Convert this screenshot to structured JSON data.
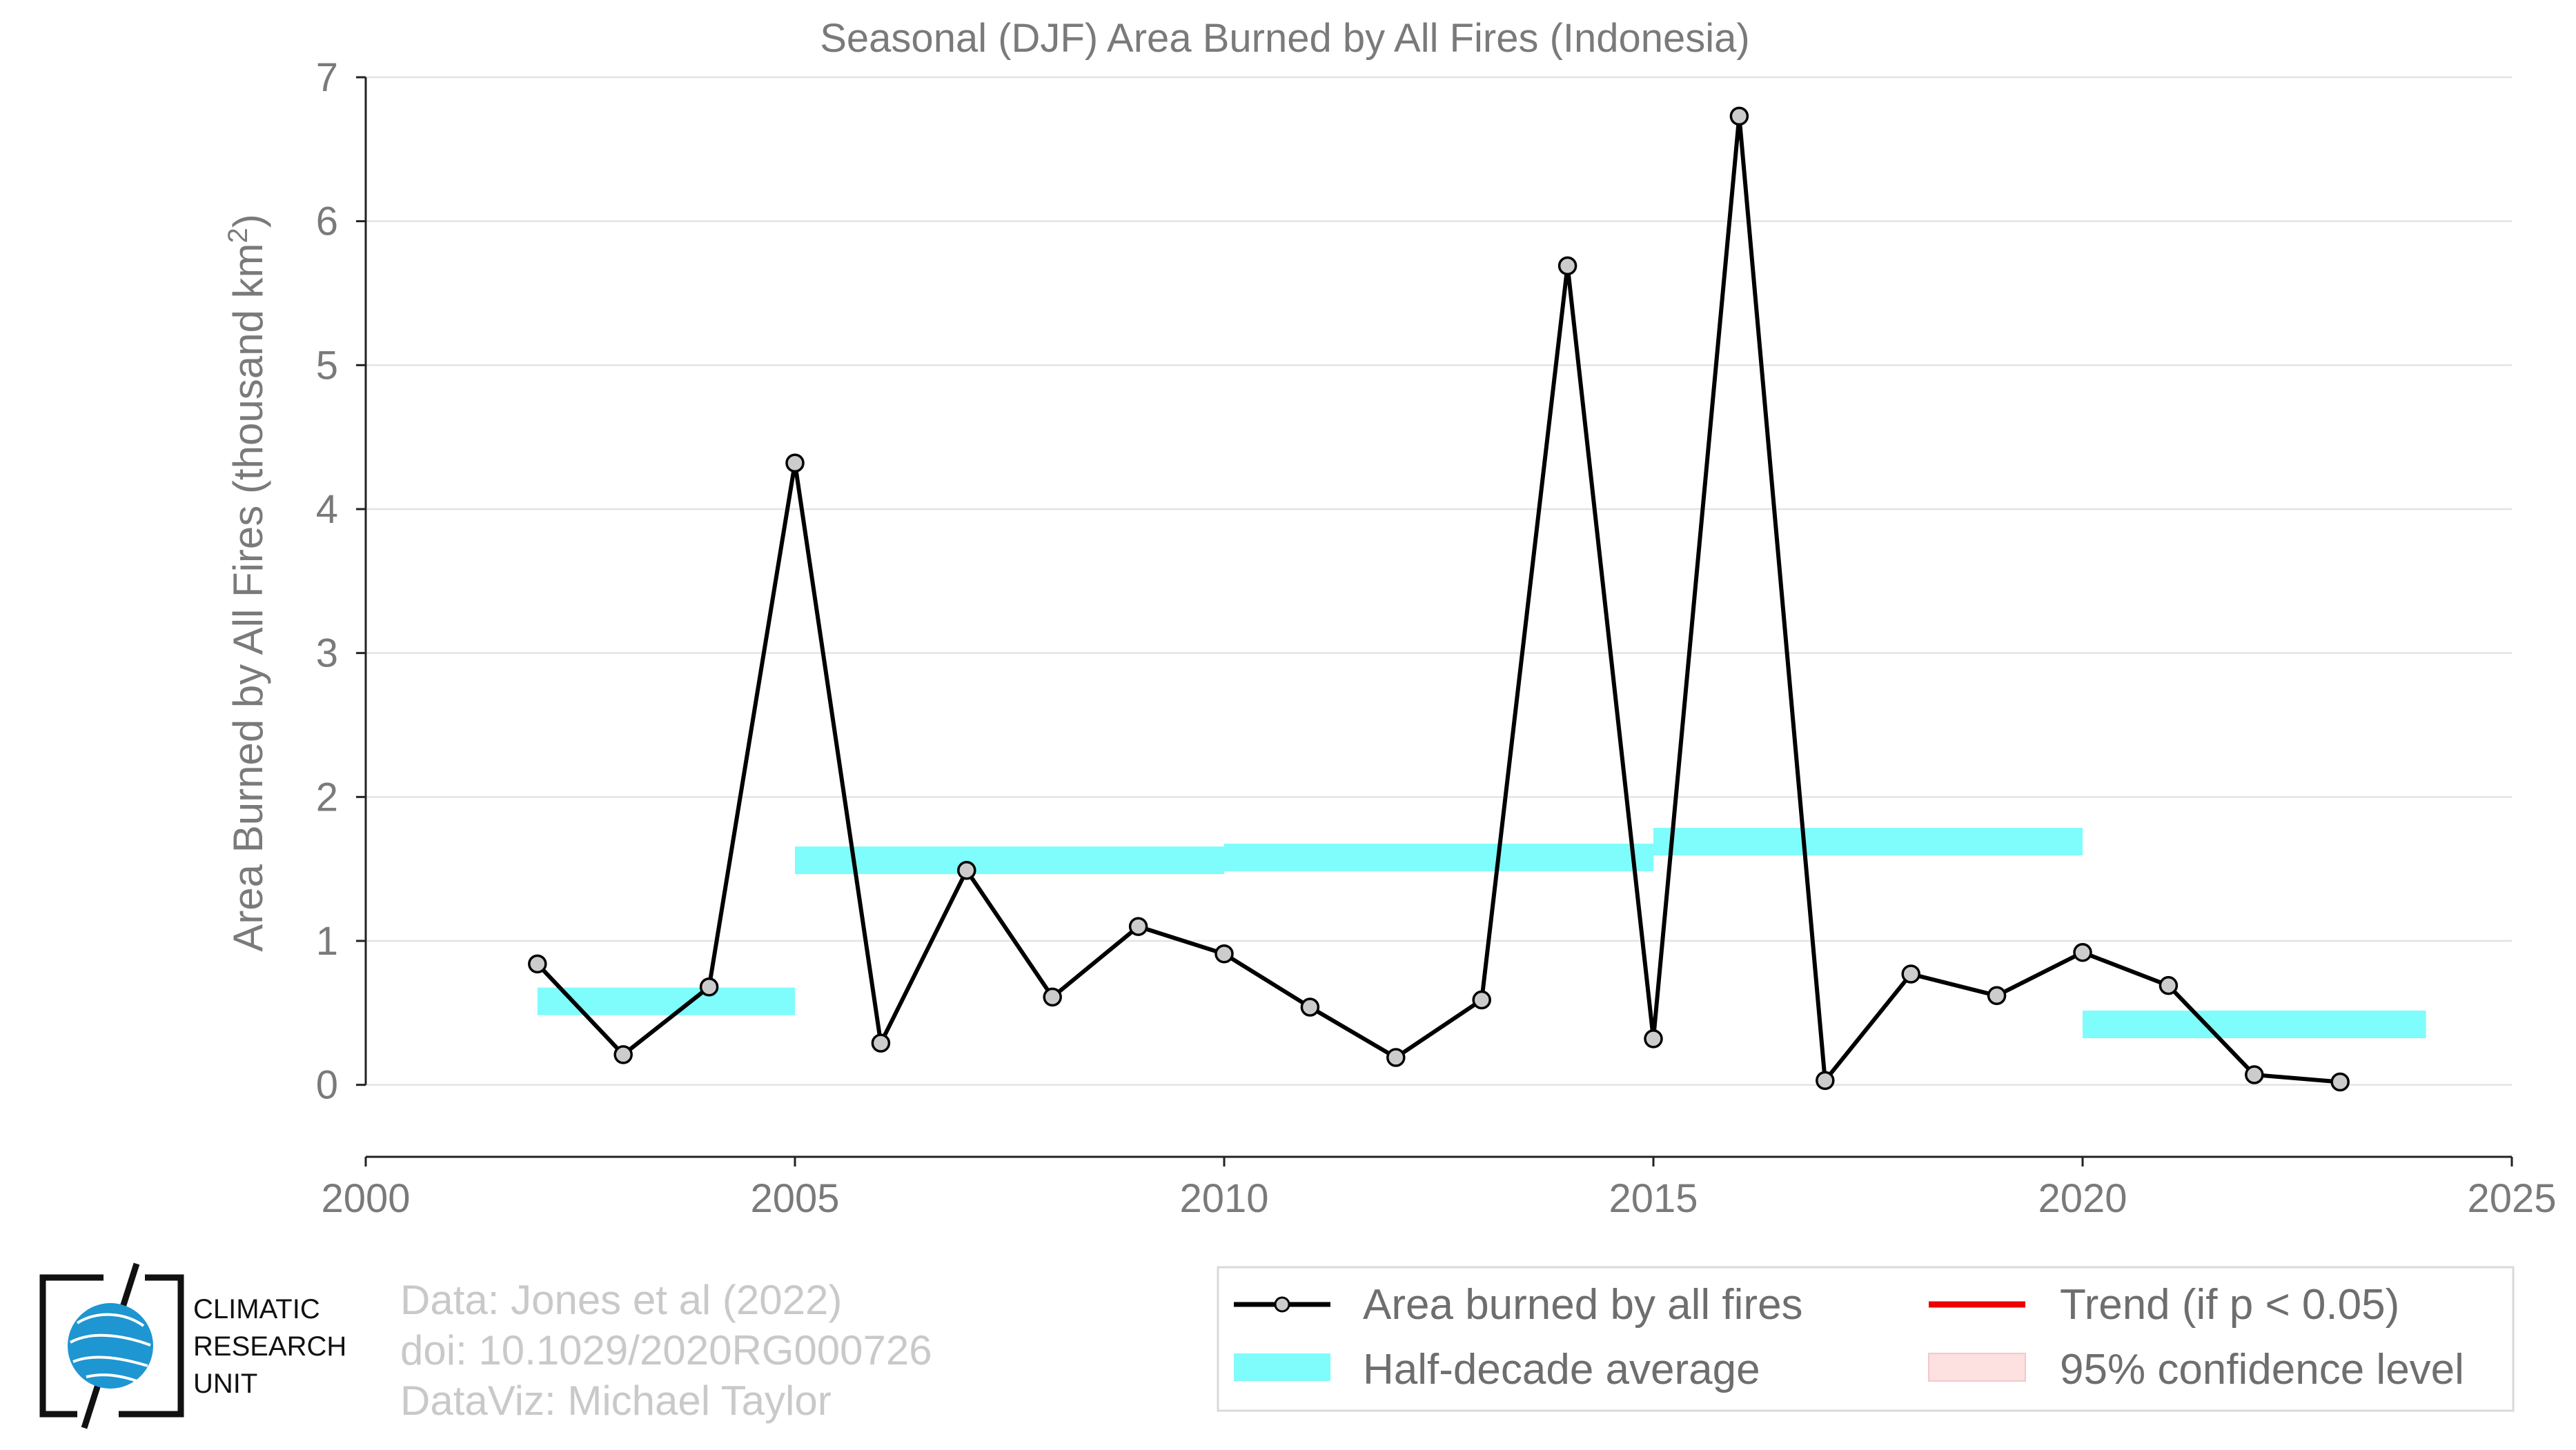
{
  "chart_data": {
    "type": "line",
    "title": "Seasonal (DJF) Area Burned by All Fires (Indonesia)",
    "ylabel_main": "Area Burned by All Fires (thousand km",
    "ylabel_sup": "2",
    "ylabel_close": ")",
    "xlim": [
      2000,
      2025
    ],
    "ylim": [
      -0.5,
      7
    ],
    "xticks": [
      2000,
      2005,
      2010,
      2015,
      2020,
      2025
    ],
    "yticks": [
      0,
      1,
      2,
      3,
      4,
      5,
      6,
      7
    ],
    "grid": true,
    "series": [
      {
        "name": "Area burned by all fires",
        "color": "#000000",
        "x": [
          2002,
          2003,
          2004,
          2005,
          2006,
          2007,
          2008,
          2009,
          2010,
          2011,
          2012,
          2013,
          2014,
          2015,
          2016,
          2017,
          2018,
          2019,
          2020,
          2021,
          2022,
          2023
        ],
        "y": [
          0.84,
          0.21,
          0.68,
          4.32,
          0.29,
          1.49,
          0.61,
          1.1,
          0.91,
          0.54,
          0.19,
          0.59,
          5.69,
          0.32,
          6.73,
          0.03,
          0.77,
          0.62,
          0.92,
          0.69,
          0.07,
          0.02
        ]
      }
    ],
    "half_decade_averages": [
      {
        "x_start": 2002,
        "x_end": 2005,
        "y": 0.58
      },
      {
        "x_start": 2005,
        "x_end": 2010,
        "y": 1.56
      },
      {
        "x_start": 2010,
        "x_end": 2015,
        "y": 1.58
      },
      {
        "x_start": 2015,
        "x_end": 2020,
        "y": 1.69
      },
      {
        "x_start": 2020,
        "x_end": 2024,
        "y": 0.42
      }
    ],
    "half_decade_color": "#7ffcfc",
    "trend_color": "#ee0000",
    "ci_color": "#fde0e0",
    "legend": {
      "placement": "bottom-right",
      "entries": [
        "Area burned by all fires",
        "Half-decade average",
        "Trend (if p < 0.05)",
        "95% confidence level"
      ]
    }
  },
  "credits": {
    "line1": "Data: Jones et al (2022)",
    "line2": "doi: 10.1029/2020RG000726",
    "line3": "DataViz: Michael Taylor"
  },
  "logo": {
    "line1": "CLIMATIC",
    "line2": "RESEARCH",
    "line3": "UNIT",
    "icon": "globe-icon",
    "globe_color": "#1e96d2"
  }
}
